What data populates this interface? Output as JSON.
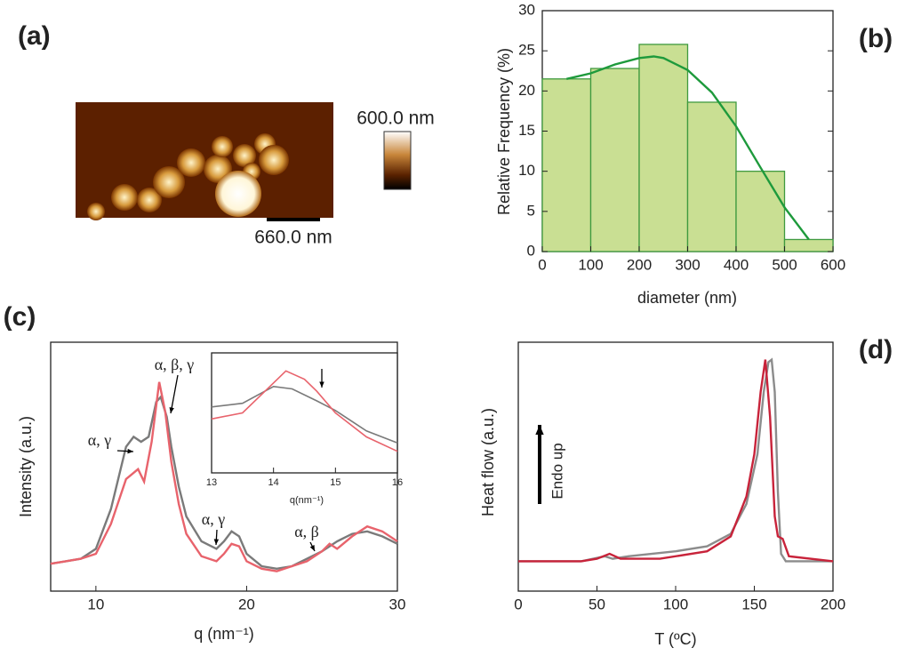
{
  "panel_a": {
    "label": "(a)",
    "colorbar_label": "600.0 nm",
    "scale_bar_label": "660.0 nm"
  },
  "chart_data": [
    {
      "type": "histogram",
      "label": "(b)",
      "xlabel": "diameter (nm)",
      "ylabel": "Relative Frequency (%)",
      "bins": [
        0,
        100,
        200,
        300,
        400,
        500,
        600
      ],
      "values": [
        21.5,
        22.8,
        25.8,
        18.6,
        10,
        1.5
      ],
      "color": "#c9df93",
      "edgecolor": "#3f9a3f",
      "series": [
        {
          "color": "#1e9a3c",
          "x": [
            50,
            100,
            150,
            200,
            230,
            250,
            300,
            350,
            400,
            450,
            500,
            550
          ],
          "values": [
            21.5,
            22.2,
            23.3,
            24.1,
            24.3,
            24.1,
            22.6,
            19.8,
            15.6,
            10.5,
            5.5,
            1.5
          ]
        }
      ],
      "xlim": [
        0,
        600
      ],
      "ylim": [
        0,
        30
      ],
      "xticks": [
        0,
        100,
        200,
        300,
        400,
        500,
        600
      ],
      "yticks": [
        0,
        5,
        10,
        15,
        20,
        25,
        30
      ]
    },
    {
      "type": "line",
      "label": "(c)",
      "xlabel": "q (nm⁻¹)",
      "ylabel": "Intensity (a.u.)",
      "annotations": [
        "α, γ",
        "α, β, γ",
        "α, γ",
        "α, β"
      ],
      "series": [
        {
          "color": "#7a7a7a",
          "x": [
            7,
            8,
            9,
            10,
            11,
            12,
            12.5,
            13,
            13.5,
            14,
            14.3,
            14.7,
            15,
            15.5,
            16,
            17,
            18,
            18.5,
            19,
            19.5,
            20,
            21,
            22,
            23,
            24,
            25,
            26,
            27,
            28,
            29,
            30
          ],
          "values": [
            0.11,
            0.12,
            0.13,
            0.17,
            0.33,
            0.58,
            0.62,
            0.6,
            0.62,
            0.76,
            0.78,
            0.7,
            0.58,
            0.42,
            0.3,
            0.2,
            0.17,
            0.2,
            0.24,
            0.22,
            0.15,
            0.1,
            0.09,
            0.1,
            0.13,
            0.16,
            0.2,
            0.23,
            0.24,
            0.22,
            0.19
          ]
        },
        {
          "color": "#e8636c",
          "x": [
            7,
            8,
            9,
            10,
            11,
            12,
            12.8,
            13.2,
            13.7,
            14.2,
            14.6,
            15,
            15.5,
            16,
            17,
            18,
            18.5,
            19,
            19.5,
            20,
            21,
            22,
            23,
            24,
            25,
            25.5,
            26,
            27,
            28,
            29,
            30
          ],
          "values": [
            0.11,
            0.12,
            0.13,
            0.15,
            0.27,
            0.45,
            0.49,
            0.44,
            0.6,
            0.84,
            0.72,
            0.52,
            0.35,
            0.23,
            0.14,
            0.12,
            0.15,
            0.19,
            0.18,
            0.12,
            0.09,
            0.08,
            0.1,
            0.12,
            0.16,
            0.19,
            0.17,
            0.22,
            0.26,
            0.24,
            0.2
          ]
        }
      ],
      "xlim": [
        7,
        30
      ],
      "ylim": [
        0,
        1
      ],
      "xticks": [
        10,
        20,
        30
      ]
    },
    {
      "type": "line",
      "xlabel": "q(nm⁻¹)",
      "series": [
        {
          "color": "#7a7a7a",
          "x": [
            13,
            13.5,
            14,
            14.3,
            14.7,
            15,
            15.5,
            16
          ],
          "values": [
            0.55,
            0.58,
            0.72,
            0.7,
            0.6,
            0.52,
            0.35,
            0.25
          ]
        },
        {
          "color": "#e8636c",
          "x": [
            13,
            13.5,
            14,
            14.2,
            14.5,
            14.7,
            15,
            15.5,
            16
          ],
          "values": [
            0.45,
            0.5,
            0.75,
            0.85,
            0.78,
            0.68,
            0.5,
            0.3,
            0.18
          ]
        }
      ],
      "xlim": [
        13,
        16
      ],
      "ylim": [
        0,
        1
      ],
      "xticks": [
        13,
        14,
        15,
        16
      ]
    },
    {
      "type": "line",
      "label": "(d)",
      "xlabel": "T  (ºC)",
      "ylabel": "Heat flow (a.u.)",
      "annotations": [
        "Endo up"
      ],
      "series": [
        {
          "color": "#8c8c8c",
          "x": [
            0,
            40,
            55,
            60,
            70,
            100,
            120,
            135,
            145,
            152,
            156,
            159,
            161,
            163,
            165,
            167,
            170,
            200
          ],
          "values": [
            0.12,
            0.12,
            0.14,
            0.13,
            0.14,
            0.16,
            0.18,
            0.23,
            0.35,
            0.55,
            0.8,
            0.92,
            0.93,
            0.8,
            0.4,
            0.15,
            0.12,
            0.12
          ]
        },
        {
          "color": "#c8233a",
          "x": [
            0,
            40,
            50,
            58,
            65,
            90,
            120,
            135,
            145,
            150,
            154,
            157,
            160,
            163,
            165,
            168,
            172,
            200
          ],
          "values": [
            0.12,
            0.12,
            0.13,
            0.15,
            0.13,
            0.13,
            0.16,
            0.22,
            0.38,
            0.55,
            0.8,
            0.93,
            0.7,
            0.3,
            0.22,
            0.21,
            0.14,
            0.12
          ]
        }
      ],
      "xlim": [
        0,
        200
      ],
      "ylim": [
        0,
        1
      ],
      "xticks": [
        0,
        50,
        100,
        150,
        200
      ]
    }
  ]
}
